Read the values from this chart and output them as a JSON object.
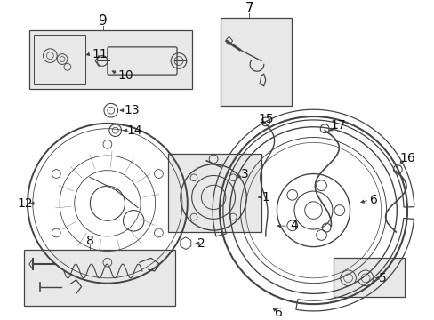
{
  "background_color": "#ffffff",
  "fig_width": 4.89,
  "fig_height": 3.6,
  "dpi": 100,
  "line_color": "#444444",
  "text_color": "#111111",
  "box_fill": "#e8e8e8",
  "font_size": 10
}
